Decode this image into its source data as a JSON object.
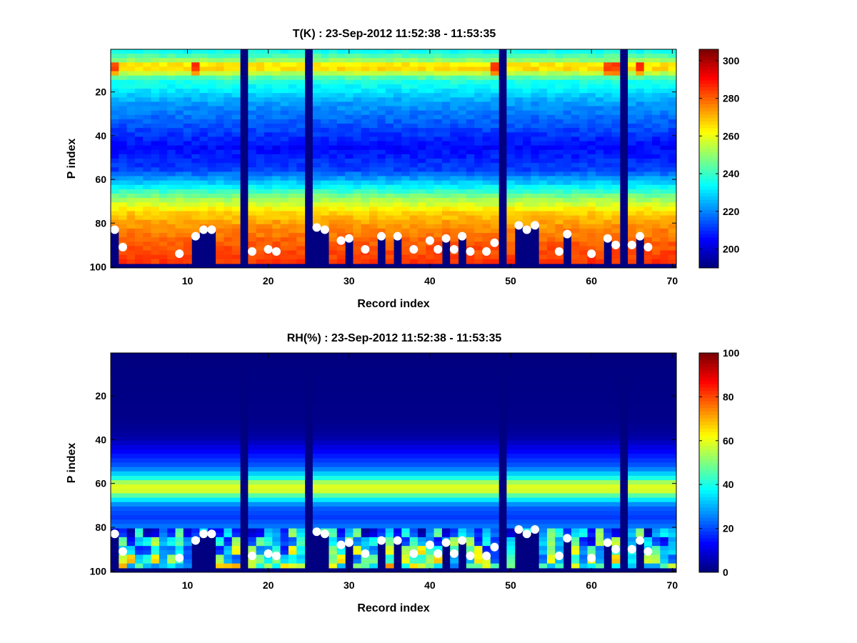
{
  "chart_data": [
    {
      "type": "heatmap",
      "title": "T(K) : 23-Sep-2012 11:52:38 - 11:53:35",
      "xlabel": "Record index",
      "ylabel": "P index",
      "xlim": [
        0.5,
        70.5
      ],
      "ylim": [
        0.5,
        100.5
      ],
      "y_reversed": true,
      "xticks": [
        10,
        20,
        30,
        40,
        50,
        60,
        70
      ],
      "yticks": [
        20,
        40,
        60,
        80,
        100
      ],
      "colormap": "jet",
      "clim": [
        190,
        306
      ],
      "colorbar_ticks": [
        200,
        220,
        240,
        260,
        280,
        300
      ],
      "missing_records": [
        17,
        25,
        49,
        64
      ],
      "profile_bottom_level": 98,
      "description_profile": "Mean vertical temperature profile by level: warm layer near level 8, cold minimum near level 45, warming toward surface (about 285 K) near level 95",
      "surface_marker_records": [
        1,
        2,
        9,
        11,
        12,
        13,
        18,
        20,
        21,
        26,
        27,
        29,
        30,
        32,
        34,
        36,
        38,
        40,
        41,
        42,
        43,
        44,
        45,
        47,
        48,
        51,
        52,
        53,
        56,
        57,
        60,
        62,
        63,
        65,
        66,
        67
      ],
      "surface_marker_levels": [
        83,
        91,
        94,
        86,
        83,
        83,
        93,
        92,
        93,
        82,
        83,
        88,
        87,
        92,
        86,
        86,
        92,
        88,
        92,
        87,
        92,
        86,
        93,
        93,
        89,
        81,
        83,
        81,
        93,
        85,
        94,
        87,
        90,
        90,
        86,
        91
      ],
      "marker_color": "#ffffff"
    },
    {
      "type": "heatmap",
      "title": "RH(%) : 23-Sep-2012 11:52:38 - 11:53:35",
      "xlabel": "Record index",
      "ylabel": "P index",
      "xlim": [
        0.5,
        70.5
      ],
      "ylim": [
        0.5,
        100.5
      ],
      "y_reversed": true,
      "xticks": [
        10,
        20,
        30,
        40,
        50,
        60,
        70
      ],
      "yticks": [
        20,
        40,
        60,
        80,
        100
      ],
      "colormap": "jet",
      "clim": [
        0,
        100
      ],
      "colorbar_ticks": [
        0,
        20,
        40,
        60,
        80,
        100
      ],
      "missing_records": [
        17,
        25,
        49,
        64
      ],
      "profile_bottom_level": 98,
      "description_profile": "Relative humidity near 0% above level 38, moist layer (about 60%) near levels 58-65, moderate values below, high values (up to 100%) near the surface in some records",
      "surface_marker_records": [
        1,
        2,
        9,
        11,
        12,
        13,
        18,
        20,
        21,
        26,
        27,
        29,
        30,
        32,
        34,
        36,
        38,
        40,
        41,
        42,
        43,
        44,
        45,
        47,
        48,
        51,
        52,
        53,
        56,
        57,
        60,
        62,
        63,
        65,
        66,
        67
      ],
      "surface_marker_levels": [
        83,
        91,
        94,
        86,
        83,
        83,
        93,
        92,
        93,
        82,
        83,
        88,
        87,
        92,
        86,
        86,
        92,
        88,
        92,
        87,
        92,
        86,
        93,
        93,
        89,
        81,
        83,
        81,
        93,
        85,
        94,
        87,
        90,
        90,
        86,
        91
      ],
      "marker_color": "#ffffff"
    }
  ]
}
